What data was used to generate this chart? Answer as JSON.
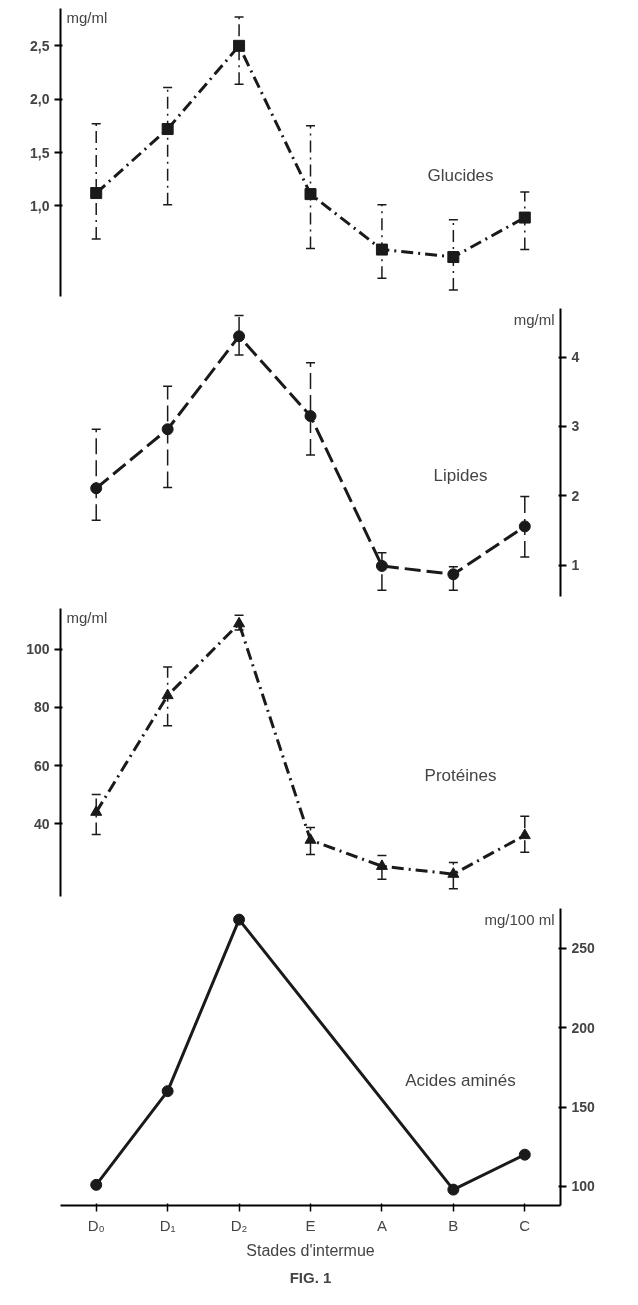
{
  "chart_data": [
    {
      "type": "line",
      "title": "Glucides",
      "ylabel": "mg/ml",
      "categories": [
        null,
        null,
        null,
        null,
        null,
        null,
        null
      ],
      "ylim": [
        0.15,
        2.85
      ],
      "yticks": [
        {
          "value": 1.0,
          "label": "1,0"
        },
        {
          "value": 1.5,
          "label": "1,5"
        },
        {
          "value": 2.0,
          "label": "2,0"
        },
        {
          "value": 2.5,
          "label": "2,5"
        }
      ],
      "tick_labels": "y",
      "marker": "square",
      "line_style": "dashdot",
      "series": [
        {
          "color": "#1a1a1a",
          "values": [
            1.12,
            1.72,
            2.5,
            1.11,
            0.59,
            0.52,
            0.89
          ],
          "errors": [
            [
              0.69,
              1.77
            ],
            [
              1.01,
              2.11
            ],
            [
              2.14,
              2.77
            ],
            [
              0.6,
              1.75
            ],
            [
              0.32,
              1.01
            ],
            [
              0.21,
              0.87
            ],
            [
              0.59,
              1.13
            ]
          ]
        }
      ]
    },
    {
      "type": "line",
      "title": "Lipides",
      "ylabel": "mg/ml",
      "categories": [
        null,
        null,
        null,
        null,
        null,
        null,
        null
      ],
      "ylim": [
        0.55,
        4.7
      ],
      "yticks": [
        1,
        2,
        3,
        4
      ],
      "tick_labels": "y",
      "marker": "circle",
      "line_style": "dashed",
      "series": [
        {
          "color": "#1a1a1a",
          "values": [
            2.11,
            2.96,
            4.3,
            3.15,
            0.99,
            0.87,
            1.56
          ],
          "errors": [
            [
              1.65,
              2.96
            ],
            [
              2.12,
              3.58
            ],
            [
              4.03,
              4.6
            ],
            [
              2.59,
              3.92
            ],
            [
              0.64,
              1.18
            ],
            [
              0.64,
              0.98
            ],
            [
              1.12,
              1.99
            ]
          ]
        }
      ]
    },
    {
      "type": "line",
      "title": "Protéines",
      "ylabel": "mg/ml",
      "categories": [
        null,
        null,
        null,
        null,
        null,
        null,
        null
      ],
      "ylim": [
        15,
        114
      ],
      "yticks": [
        40,
        60,
        80,
        100
      ],
      "tick_labels": "y",
      "marker": "triangle",
      "line_style": "dashdot",
      "series": [
        {
          "color": "#1a1a1a",
          "values": [
            44.0,
            84.1,
            108.8,
            34.4,
            25.4,
            22.7,
            36.0
          ],
          "errors": [
            [
              36.3,
              50.1
            ],
            [
              73.7,
              93.9
            ],
            [
              106.6,
              111.7
            ],
            [
              29.4,
              38.7
            ],
            [
              20.9,
              29.1
            ],
            [
              17.7,
              26.7
            ],
            [
              30.2,
              42.6
            ]
          ]
        }
      ]
    },
    {
      "type": "line",
      "title": "Acides aminés",
      "ylabel": "mg/100 ml",
      "xlabel": "Stades d'intermue",
      "categories": [
        "D₀",
        "D₁",
        "D₂",
        "E",
        "A",
        "B",
        "C"
      ],
      "y2lim": [
        88,
        275
      ],
      "y2ticks": [
        100,
        150,
        200,
        250
      ],
      "marker": "circle",
      "line_style": "solid",
      "series": [
        {
          "color": "#1a1a1a",
          "axis": "y2",
          "values": [
            101,
            160,
            268,
            null,
            null,
            98,
            120
          ]
        }
      ],
      "annotations": [
        "FIG. 1"
      ]
    }
  ]
}
